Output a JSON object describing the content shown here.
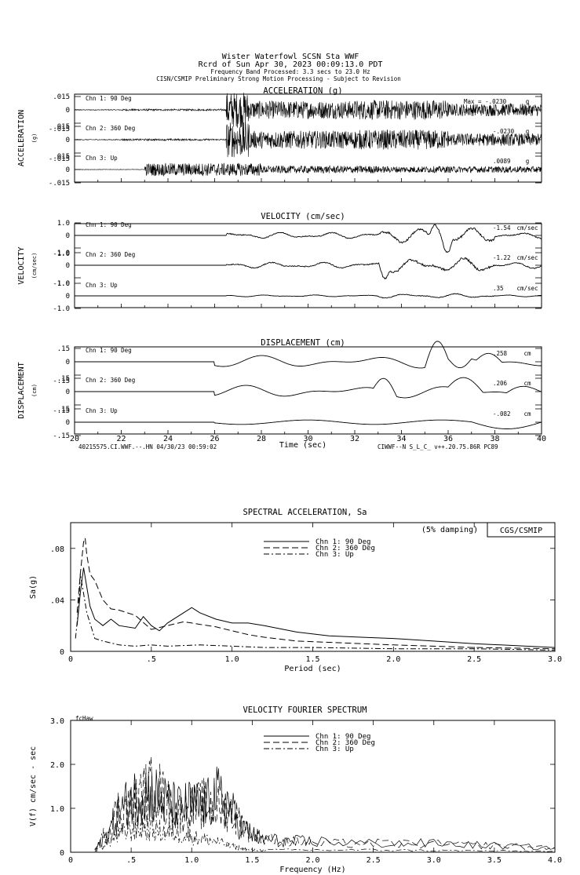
{
  "header": {
    "line1": "Wister Waterfowl    SCSN Sta WWF",
    "line2": "Rcrd of Sun Apr 30, 2023 00:09:13.0 PDT",
    "line3": "Frequency Band Processed: 3.3 secs to 23.0 Hz",
    "line4": "CISN/CSMIP Preliminary Strong Motion Processing - Subject to Revision"
  },
  "footer": {
    "left": "40215575.CI.WWF.--.HN 04/30/23 00:59:02",
    "right": "CIWWF--N  S_L_C_  v++.20.75.86R PC89"
  },
  "chart_data": [
    {
      "id": "acc",
      "type": "line",
      "title": "ACCELERATION (g)",
      "ylabel": "ACCELERATION",
      "yunit": "(g)",
      "xlabel": "Time (sec)",
      "xlim": [
        20,
        40
      ],
      "xticks": [
        "20",
        "22",
        "24",
        "26",
        "28",
        "30",
        "32",
        "34",
        "36",
        "38",
        "40"
      ],
      "ytick_labels": [
        ".015",
        "0",
        "-.015"
      ],
      "ylim": [
        -0.015,
        0.015
      ],
      "max_prefix": "Max = ",
      "channels": [
        {
          "name": "Chn 1: 90 Deg",
          "peak_label": "-.0230",
          "unit": "g"
        },
        {
          "name": "Chn 2: 360 Deg",
          "peak_label": "-.0230",
          "unit": "g"
        },
        {
          "name": "Chn 3: Up",
          "peak_label": ".0089",
          "unit": "g"
        }
      ],
      "peaks": [
        -0.023,
        -0.023,
        0.0089
      ]
    },
    {
      "id": "vel",
      "type": "line",
      "title": "VELOCITY (cm/sec)",
      "ylabel": "VELOCITY",
      "yunit": "(cm/sec)",
      "xlim": [
        20,
        40
      ],
      "ytick_labels": [
        "1.0",
        "0",
        "-1.0"
      ],
      "ylim": [
        -1.0,
        1.0
      ],
      "channels": [
        {
          "name": "Chn 1: 90 Deg",
          "peak_label": "-1.54",
          "unit": "cm/sec"
        },
        {
          "name": "Chn 2: 360 Deg",
          "peak_label": "-1.22",
          "unit": "cm/sec"
        },
        {
          "name": "Chn 3: Up",
          "peak_label": ".35",
          "unit": "cm/sec"
        }
      ],
      "peaks": [
        -1.54,
        -1.22,
        0.35
      ]
    },
    {
      "id": "disp",
      "type": "line",
      "title": "DISPLACEMENT (cm)",
      "ylabel": "DISPLACEMENT",
      "yunit": "(cm)",
      "xlim": [
        20,
        40
      ],
      "ytick_labels": [
        ".15",
        "0",
        "-.15"
      ],
      "ylim": [
        -0.15,
        0.15
      ],
      "channels": [
        {
          "name": "Chn 1: 90 Deg",
          "peak_label": ".258",
          "unit": "cm"
        },
        {
          "name": "Chn 2: 360 Deg",
          "peak_label": ".206",
          "unit": "cm"
        },
        {
          "name": "Chn 3: Up",
          "peak_label": "-.082",
          "unit": "cm"
        }
      ],
      "peaks": [
        0.258,
        0.206,
        -0.082
      ]
    },
    {
      "id": "sa",
      "type": "line",
      "title": "SPECTRAL ACCELERATION, Sa",
      "xlabel": "Period (sec)",
      "ylabel": "Sa(g)",
      "xlim": [
        0,
        3.0
      ],
      "ylim": [
        0,
        0.1
      ],
      "xticks": [
        "0",
        ".5",
        "1.0",
        "1.5",
        "2.0",
        "2.5",
        "3.0"
      ],
      "yticks": [
        "0",
        ".04",
        ".08"
      ],
      "damping": "(5% damping)",
      "agency": "CGS/CSMIP",
      "series": [
        {
          "name": "Chn 1: 90 Deg",
          "dash": "",
          "x": [
            0.04,
            0.06,
            0.08,
            0.1,
            0.12,
            0.15,
            0.2,
            0.25,
            0.3,
            0.4,
            0.45,
            0.5,
            0.55,
            0.6,
            0.7,
            0.75,
            0.8,
            0.9,
            1.0,
            1.1,
            1.2,
            1.4,
            1.6,
            1.8,
            2.0,
            2.5,
            3.0
          ],
          "y": [
            0.02,
            0.045,
            0.065,
            0.05,
            0.035,
            0.025,
            0.02,
            0.025,
            0.02,
            0.018,
            0.027,
            0.02,
            0.016,
            0.022,
            0.03,
            0.034,
            0.03,
            0.025,
            0.022,
            0.022,
            0.02,
            0.015,
            0.012,
            0.011,
            0.01,
            0.006,
            0.003
          ]
        },
        {
          "name": "Chn 2: 360 Deg",
          "dash": "8,4",
          "x": [
            0.04,
            0.06,
            0.08,
            0.09,
            0.1,
            0.12,
            0.15,
            0.2,
            0.25,
            0.3,
            0.4,
            0.5,
            0.6,
            0.7,
            0.75,
            0.8,
            0.9,
            1.0,
            1.1,
            1.2,
            1.4,
            1.6,
            1.8,
            2.0,
            2.5,
            3.0
          ],
          "y": [
            0.03,
            0.06,
            0.085,
            0.088,
            0.075,
            0.06,
            0.055,
            0.04,
            0.033,
            0.032,
            0.028,
            0.017,
            0.02,
            0.023,
            0.022,
            0.021,
            0.019,
            0.016,
            0.013,
            0.011,
            0.008,
            0.007,
            0.006,
            0.005,
            0.003,
            0.002
          ]
        },
        {
          "name": "Chn 3: Up",
          "dash": "7,3,2,3",
          "x": [
            0.03,
            0.05,
            0.06,
            0.08,
            0.1,
            0.15,
            0.2,
            0.3,
            0.4,
            0.5,
            0.6,
            0.8,
            1.0,
            1.2,
            1.5,
            2.0,
            2.5,
            3.0
          ],
          "y": [
            0.01,
            0.035,
            0.06,
            0.045,
            0.03,
            0.01,
            0.008,
            0.005,
            0.004,
            0.005,
            0.004,
            0.005,
            0.004,
            0.003,
            0.003,
            0.002,
            0.002,
            0.001
          ]
        }
      ]
    },
    {
      "id": "fourier",
      "type": "line",
      "title": "VELOCITY FOURIER SPECTRUM",
      "xlabel": "Frequency (Hz)",
      "ylabel": "V(f) cm/sec - sec",
      "corner_label": "fcHaw",
      "xlim": [
        0,
        4.0
      ],
      "ylim": [
        0,
        3.0
      ],
      "xticks": [
        "0",
        ".5",
        "1.0",
        "1.5",
        "2.0",
        "2.5",
        "3.0",
        "3.5",
        "4.0"
      ],
      "yticks": [
        "0",
        "1.0",
        "2.0",
        "3.0"
      ],
      "series": [
        {
          "name": "Chn 1: 90 Deg",
          "dash": "",
          "x": [
            0.2,
            0.3,
            0.4,
            0.5,
            0.6,
            0.7,
            0.8,
            0.9,
            1.0,
            1.1,
            1.2,
            1.3,
            1.4,
            1.5,
            1.6,
            1.8,
            2.0,
            2.5,
            3.0,
            3.5,
            4.0
          ],
          "y": [
            0.05,
            0.4,
            0.9,
            1.2,
            1.4,
            1.3,
            1.1,
            1.0,
            1.1,
            1.0,
            1.3,
            1.1,
            0.6,
            0.4,
            0.3,
            0.25,
            0.25,
            0.2,
            0.2,
            0.15,
            0.1
          ]
        },
        {
          "name": "Chn 2: 360 Deg",
          "dash": "8,4",
          "x": [
            0.2,
            0.3,
            0.4,
            0.5,
            0.6,
            0.7,
            0.8,
            0.9,
            1.0,
            1.1,
            1.2,
            1.3,
            1.4,
            1.5,
            1.6,
            1.8,
            2.0,
            2.5,
            3.0,
            3.5,
            4.0
          ],
          "y": [
            0.05,
            0.5,
            1.0,
            1.0,
            1.3,
            1.5,
            1.1,
            0.9,
            1.0,
            1.1,
            1.0,
            1.0,
            0.7,
            0.4,
            0.3,
            0.25,
            0.2,
            0.2,
            0.18,
            0.15,
            0.1
          ]
        },
        {
          "name": "Chn 3: Up",
          "dash": "7,3,2,3",
          "x": [
            0.2,
            0.3,
            0.4,
            0.5,
            0.6,
            0.7,
            0.8,
            0.9,
            1.0,
            1.1,
            1.2,
            1.3,
            1.4,
            1.5,
            1.6,
            2.0,
            2.5,
            3.0,
            3.5,
            4.0
          ],
          "y": [
            0.02,
            0.2,
            0.4,
            0.5,
            0.55,
            0.5,
            0.45,
            0.4,
            0.35,
            0.3,
            0.25,
            0.15,
            0.1,
            0.05,
            0.05,
            0.05,
            0.05,
            0.04,
            0.03,
            0.02
          ]
        }
      ]
    }
  ]
}
